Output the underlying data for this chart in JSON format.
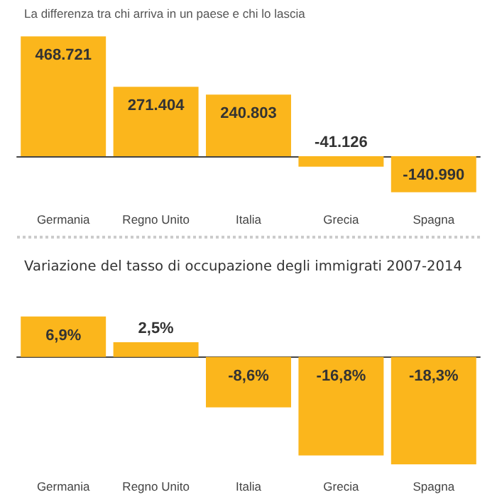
{
  "chart_data": [
    {
      "type": "bar",
      "subtitle": "La differenza tra chi arriva in un paese e chi lo lascia",
      "categories": [
        "Germania",
        "Regno Unito",
        "Italia",
        "Grecia",
        "Spagna"
      ],
      "values": [
        468721,
        271404,
        240803,
        -41126,
        -140990
      ],
      "value_labels": [
        "468.721",
        "271.404",
        "240.803",
        "-41.126",
        "-140.990"
      ],
      "color": "#fbb61c",
      "tick_labels": "x"
    },
    {
      "type": "bar",
      "title": "Variazione del tasso di occupazione degli immigrati 2007-2014",
      "categories": [
        "Germania",
        "Regno Unito",
        "Italia",
        "Grecia",
        "Spagna"
      ],
      "values": [
        6.9,
        2.5,
        -8.6,
        -16.8,
        -18.3
      ],
      "value_labels": [
        "6,9%",
        "2,5%",
        "-8,6%",
        "-16,8%",
        "-18,3%"
      ],
      "color": "#fbb61c",
      "tick_labels": "x"
    }
  ]
}
